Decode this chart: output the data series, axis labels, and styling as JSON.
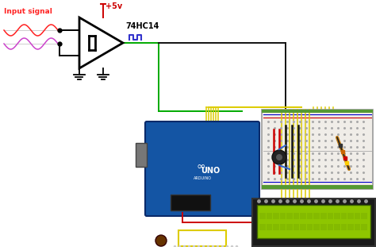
{
  "bg_color": "#ffffff",
  "input_signal_label": "Input signal",
  "plus5v_label": "+5v",
  "ic_label": "74HC14",
  "wire_green": "#00aa00",
  "wire_black": "#111111",
  "wire_yellow": "#ddcc00",
  "wire_red": "#cc0000",
  "wire_blue": "#0000bb",
  "color_red_sig": "#ff2222",
  "color_pink_sig": "#cc44cc",
  "color_plus5v": "#cc0000",
  "color_sq_wave": "#3333cc",
  "arduino_blue": "#1455a4",
  "arduino_dark": "#0a2a6a",
  "bb_bg": "#f0ede8",
  "bb_border": "#cccccc",
  "lcd_outer": "#1a1a1a",
  "lcd_green": "#8ec600",
  "lcd_dark_green": "#1a3300",
  "figsize": [
    4.74,
    3.11
  ],
  "dpi": 100
}
